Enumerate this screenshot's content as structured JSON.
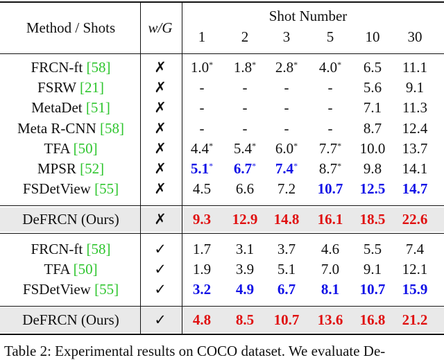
{
  "header": {
    "method_col": "Method / Shots",
    "wg_col": "w/G",
    "shot_number": "Shot Number",
    "shots": [
      "1",
      "2",
      "3",
      "5",
      "10",
      "30"
    ]
  },
  "groups": [
    {
      "rows": [
        {
          "method": "FRCN-ft ",
          "ref": "[58]",
          "wg": "✗",
          "cells": [
            {
              "v": "1.0",
              "s": "*",
              "c": ""
            },
            {
              "v": "1.8",
              "s": "*",
              "c": ""
            },
            {
              "v": "2.8",
              "s": "*",
              "c": ""
            },
            {
              "v": "4.0",
              "s": "*",
              "c": ""
            },
            {
              "v": "6.5",
              "s": "",
              "c": ""
            },
            {
              "v": "11.1",
              "s": "",
              "c": ""
            }
          ]
        },
        {
          "method": "FSRW ",
          "ref": "[21]",
          "wg": "✗",
          "cells": [
            {
              "v": "-",
              "s": "",
              "c": ""
            },
            {
              "v": "-",
              "s": "",
              "c": ""
            },
            {
              "v": "-",
              "s": "",
              "c": ""
            },
            {
              "v": "-",
              "s": "",
              "c": ""
            },
            {
              "v": "5.6",
              "s": "",
              "c": ""
            },
            {
              "v": "9.1",
              "s": "",
              "c": ""
            }
          ]
        },
        {
          "method": "MetaDet ",
          "ref": "[51]",
          "wg": "✗",
          "cells": [
            {
              "v": "-",
              "s": "",
              "c": ""
            },
            {
              "v": "-",
              "s": "",
              "c": ""
            },
            {
              "v": "-",
              "s": "",
              "c": ""
            },
            {
              "v": "-",
              "s": "",
              "c": ""
            },
            {
              "v": "7.1",
              "s": "",
              "c": ""
            },
            {
              "v": "11.3",
              "s": "",
              "c": ""
            }
          ]
        },
        {
          "method": "Meta R-CNN ",
          "ref": "[58]",
          "wg": "✗",
          "cells": [
            {
              "v": "-",
              "s": "",
              "c": ""
            },
            {
              "v": "-",
              "s": "",
              "c": ""
            },
            {
              "v": "-",
              "s": "",
              "c": ""
            },
            {
              "v": "-",
              "s": "",
              "c": ""
            },
            {
              "v": "8.7",
              "s": "",
              "c": ""
            },
            {
              "v": "12.4",
              "s": "",
              "c": ""
            }
          ]
        },
        {
          "method": "TFA ",
          "ref": "[50]",
          "wg": "✗",
          "cells": [
            {
              "v": "4.4",
              "s": "*",
              "c": ""
            },
            {
              "v": "5.4",
              "s": "*",
              "c": ""
            },
            {
              "v": "6.0",
              "s": "*",
              "c": ""
            },
            {
              "v": "7.7",
              "s": "*",
              "c": ""
            },
            {
              "v": "10.0",
              "s": "",
              "c": ""
            },
            {
              "v": "13.7",
              "s": "",
              "c": ""
            }
          ]
        },
        {
          "method": "MPSR ",
          "ref": "[52]",
          "wg": "✗",
          "cells": [
            {
              "v": "5.1",
              "s": "*",
              "c": "blue"
            },
            {
              "v": "6.7",
              "s": "*",
              "c": "blue"
            },
            {
              "v": "7.4",
              "s": "*",
              "c": "blue"
            },
            {
              "v": "8.7",
              "s": "*",
              "c": ""
            },
            {
              "v": "9.8",
              "s": "",
              "c": ""
            },
            {
              "v": "14.1",
              "s": "",
              "c": ""
            }
          ]
        },
        {
          "method": "FSDetView ",
          "ref": "[55]",
          "wg": "✗",
          "cells": [
            {
              "v": "4.5",
              "s": "",
              "c": ""
            },
            {
              "v": "6.6",
              "s": "",
              "c": ""
            },
            {
              "v": "7.2",
              "s": "",
              "c": ""
            },
            {
              "v": "10.7",
              "s": "",
              "c": "blue"
            },
            {
              "v": "12.5",
              "s": "",
              "c": "blue"
            },
            {
              "v": "14.7",
              "s": "",
              "c": "blue"
            }
          ]
        }
      ],
      "ours": {
        "method": "DeFRCN (Ours)",
        "wg": "✗",
        "cells": [
          {
            "v": "9.3",
            "s": "",
            "c": "red"
          },
          {
            "v": "12.9",
            "s": "",
            "c": "red"
          },
          {
            "v": "14.8",
            "s": "",
            "c": "red"
          },
          {
            "v": "16.1",
            "s": "",
            "c": "red"
          },
          {
            "v": "18.5",
            "s": "",
            "c": "red"
          },
          {
            "v": "22.6",
            "s": "",
            "c": "red"
          }
        ]
      }
    },
    {
      "rows": [
        {
          "method": "FRCN-ft ",
          "ref": "[58]",
          "wg": "✓",
          "cells": [
            {
              "v": "1.7",
              "s": "",
              "c": ""
            },
            {
              "v": "3.1",
              "s": "",
              "c": ""
            },
            {
              "v": "3.7",
              "s": "",
              "c": ""
            },
            {
              "v": "4.6",
              "s": "",
              "c": ""
            },
            {
              "v": "5.5",
              "s": "",
              "c": ""
            },
            {
              "v": "7.4",
              "s": "",
              "c": ""
            }
          ]
        },
        {
          "method": "TFA ",
          "ref": "[50]",
          "wg": "✓",
          "cells": [
            {
              "v": "1.9",
              "s": "",
              "c": ""
            },
            {
              "v": "3.9",
              "s": "",
              "c": ""
            },
            {
              "v": "5.1",
              "s": "",
              "c": ""
            },
            {
              "v": "7.0",
              "s": "",
              "c": ""
            },
            {
              "v": "9.1",
              "s": "",
              "c": ""
            },
            {
              "v": "12.1",
              "s": "",
              "c": ""
            }
          ]
        },
        {
          "method": "FSDetView ",
          "ref": "[55]",
          "wg": "✓",
          "cells": [
            {
              "v": "3.2",
              "s": "",
              "c": "blue"
            },
            {
              "v": "4.9",
              "s": "",
              "c": "blue"
            },
            {
              "v": "6.7",
              "s": "",
              "c": "blue"
            },
            {
              "v": "8.1",
              "s": "",
              "c": "blue"
            },
            {
              "v": "10.7",
              "s": "",
              "c": "blue"
            },
            {
              "v": "15.9",
              "s": "",
              "c": "blue"
            }
          ]
        }
      ],
      "ours": {
        "method": "DeFRCN (Ours)",
        "wg": "✓",
        "cells": [
          {
            "v": "4.8",
            "s": "",
            "c": "red"
          },
          {
            "v": "8.5",
            "s": "",
            "c": "red"
          },
          {
            "v": "10.7",
            "s": "",
            "c": "red"
          },
          {
            "v": "13.6",
            "s": "",
            "c": "red"
          },
          {
            "v": "16.8",
            "s": "",
            "c": "red"
          },
          {
            "v": "21.2",
            "s": "",
            "c": "red"
          }
        ]
      }
    }
  ],
  "caption": "Table 2: Experimental results on COCO dataset. We evaluate De-",
  "colors": {
    "reference": "#2ec52e",
    "second_best": "#1010e6",
    "best": "#e01010",
    "highlight_band": "#e9e9e9"
  }
}
